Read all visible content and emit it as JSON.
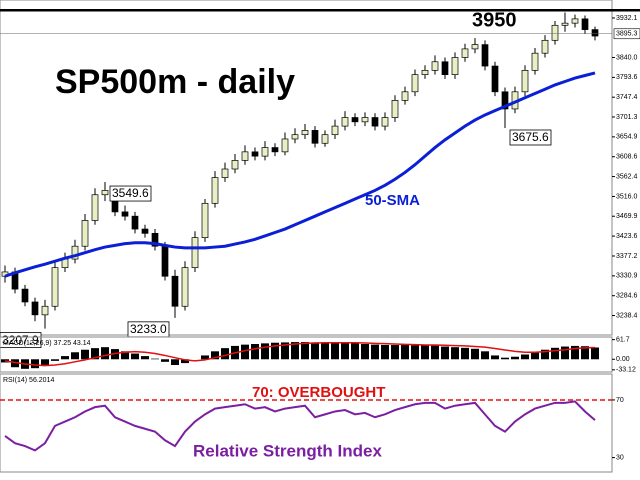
{
  "chart_data": [
    {
      "type": "candlestick",
      "title": "SP500m - daily",
      "open": [
        3330,
        3340,
        3300,
        3270,
        3240,
        3260,
        3350,
        3370,
        3400,
        3460,
        3520,
        3530,
        3480,
        3470,
        3440,
        3430,
        3400,
        3330,
        3260,
        3350,
        3420,
        3500,
        3560,
        3580,
        3600,
        3620,
        3610,
        3630,
        3620,
        3650,
        3660,
        3670,
        3640,
        3660,
        3680,
        3700,
        3690,
        3700,
        3680,
        3700,
        3740,
        3760,
        3800,
        3810,
        3830,
        3800,
        3840,
        3860,
        3870,
        3820,
        3760,
        3720,
        3760,
        3810,
        3850,
        3880,
        3915,
        3920,
        3930,
        3905
      ],
      "high": [
        3355,
        3350,
        3310,
        3280,
        3275,
        3365,
        3385,
        3415,
        3475,
        3535,
        3549.6,
        3540,
        3495,
        3480,
        3450,
        3440,
        3410,
        3345,
        3365,
        3435,
        3510,
        3575,
        3595,
        3615,
        3635,
        3630,
        3645,
        3640,
        3665,
        3675,
        3685,
        3680,
        3670,
        3695,
        3715,
        3710,
        3712,
        3710,
        3712,
        3752,
        3772,
        3812,
        3822,
        3845,
        3840,
        3852,
        3872,
        3885,
        3880,
        3830,
        3770,
        3772,
        3822,
        3862,
        3892,
        3925,
        3945,
        3940,
        3938,
        3912
      ],
      "low": [
        3315,
        3290,
        3260,
        3225,
        3207.9,
        3250,
        3340,
        3360,
        3390,
        3450,
        3505,
        3470,
        3460,
        3430,
        3420,
        3390,
        3320,
        3233.0,
        3250,
        3340,
        3410,
        3490,
        3550,
        3570,
        3590,
        3600,
        3600,
        3610,
        3612,
        3640,
        3650,
        3630,
        3632,
        3650,
        3670,
        3680,
        3680,
        3670,
        3670,
        3690,
        3730,
        3750,
        3790,
        3800,
        3790,
        3790,
        3830,
        3850,
        3810,
        3750,
        3675.6,
        3710,
        3750,
        3800,
        3840,
        3870,
        3900,
        3910,
        3895,
        3880
      ],
      "close": [
        3340,
        3300,
        3270,
        3240,
        3260,
        3350,
        3370,
        3400,
        3460,
        3520,
        3530,
        3480,
        3470,
        3440,
        3430,
        3400,
        3330,
        3260,
        3350,
        3420,
        3500,
        3560,
        3580,
        3600,
        3620,
        3610,
        3630,
        3620,
        3650,
        3660,
        3670,
        3640,
        3660,
        3680,
        3700,
        3690,
        3700,
        3680,
        3700,
        3740,
        3760,
        3800,
        3810,
        3830,
        3800,
        3840,
        3860,
        3870,
        3820,
        3760,
        3720,
        3760,
        3810,
        3850,
        3880,
        3915,
        3920,
        3930,
        3905,
        3890
      ],
      "up_color": "#e9efc4",
      "down_color": "#000000",
      "sma_label": "50-SMA",
      "sma_color": "#0a1fd6",
      "sma": [
        3330,
        3338,
        3345,
        3352,
        3358,
        3365,
        3372,
        3378,
        3385,
        3392,
        3398,
        3402,
        3406,
        3408,
        3408,
        3406,
        3402,
        3398,
        3396,
        3396,
        3396,
        3398,
        3400,
        3405,
        3410,
        3416,
        3424,
        3432,
        3440,
        3450,
        3460,
        3470,
        3480,
        3490,
        3500,
        3510,
        3520,
        3530,
        3542,
        3556,
        3572,
        3590,
        3610,
        3630,
        3648,
        3664,
        3680,
        3694,
        3706,
        3716,
        3726,
        3736,
        3746,
        3756,
        3766,
        3776,
        3784,
        3792,
        3798,
        3804
      ],
      "level": 3950,
      "current_price": 3895.3,
      "annotations": [
        {
          "value": 3549.6,
          "label": "3549.6"
        },
        {
          "value": 3207.9,
          "label": "3207.9"
        },
        {
          "value": 3233.0,
          "label": "3233.0"
        },
        {
          "value": 3675.6,
          "label": "3675.6"
        }
      ],
      "ylim": [
        3193,
        3974
      ],
      "yticks": [
        3932.1,
        {
          "value": 3840.0,
          "label": "3840.0"
        },
        3793.6,
        3747.4,
        3701.3,
        3654.9,
        3608.6,
        3562.4,
        {
          "value": 3516.0,
          "label": "3516.0"
        },
        3469.9,
        3423.6,
        3377.2,
        3330.9,
        3284.6,
        3238.4
      ]
    },
    {
      "type": "macd",
      "title": "MACD(12,26,9) 37.25 43.14",
      "histogram": [
        -10,
        -25,
        -30,
        -28,
        -20,
        -5,
        10,
        22,
        30,
        35,
        38,
        32,
        25,
        18,
        10,
        2,
        -8,
        -18,
        -12,
        0,
        12,
        25,
        35,
        42,
        46,
        48,
        50,
        52,
        53,
        54,
        54,
        53,
        52,
        52,
        52,
        50,
        48,
        46,
        45,
        45,
        45,
        44,
        44,
        43,
        40,
        38,
        36,
        33,
        25,
        12,
        5,
        8,
        15,
        22,
        30,
        36,
        40,
        42,
        41,
        37
      ],
      "signal": [
        -5,
        -10,
        -15,
        -18,
        -20,
        -18,
        -14,
        -8,
        -2,
        5,
        12,
        18,
        22,
        24,
        22,
        18,
        12,
        5,
        -2,
        -5,
        -2,
        5,
        12,
        20,
        27,
        33,
        38,
        42,
        45,
        48,
        50,
        51,
        52,
        52,
        52,
        52,
        51,
        50,
        49,
        48,
        47,
        46,
        45,
        45,
        44,
        43,
        42,
        40,
        38,
        34,
        29,
        25,
        22,
        22,
        24,
        27,
        30,
        34,
        36,
        37
      ],
      "histogram_color": "#000000",
      "signal_color": "#e01010",
      "ylim": [
        -40,
        70
      ],
      "yticks": [
        61.7,
        {
          "value": 0,
          "label": "0.00"
        },
        -33.12
      ]
    },
    {
      "type": "rsi",
      "title": "RSI(14) 56.2014",
      "subtitle": "Relative Strength Index",
      "values": [
        45,
        40,
        38,
        35,
        40,
        52,
        55,
        58,
        62,
        65,
        66,
        58,
        55,
        52,
        50,
        48,
        42,
        38,
        48,
        55,
        60,
        64,
        65,
        66,
        67,
        64,
        65,
        62,
        64,
        65,
        66,
        58,
        60,
        62,
        63,
        60,
        61,
        58,
        60,
        63,
        65,
        67,
        68,
        68,
        64,
        66,
        67,
        68,
        60,
        52,
        48,
        55,
        60,
        64,
        66,
        68,
        68,
        69,
        62,
        56
      ],
      "color": "#7b1fa2",
      "overbought": {
        "value": 70,
        "label": "70: OVERBOUGHT"
      },
      "overbought_color": "#e01010",
      "ylim": [
        20,
        88
      ],
      "yticks": [
        70,
        30
      ]
    }
  ]
}
